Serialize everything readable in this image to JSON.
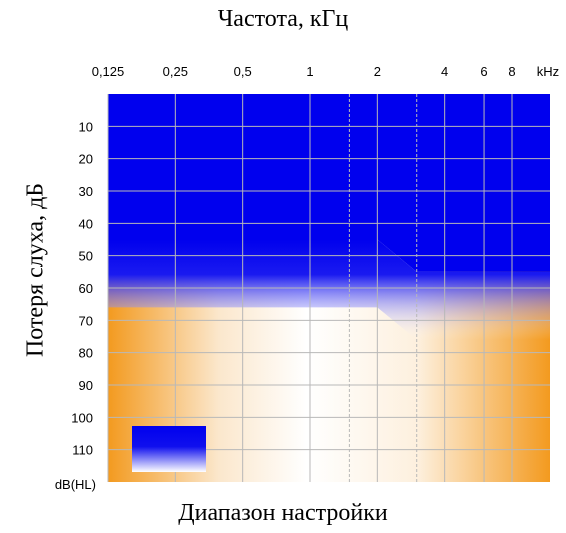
{
  "chart_data": {
    "type": "area",
    "title": "Частота, кГц",
    "xlabel": "Диапазон настройки",
    "ylabel": "Потеря слуха, дБ",
    "x_unit": "kHz",
    "y_unit": "dB(HL)",
    "x_ticks": [
      "0,125",
      "0,25",
      "0,5",
      "1",
      "2",
      "4",
      "6",
      "8"
    ],
    "x_tick_values": [
      0.125,
      0.25,
      0.5,
      1,
      2,
      4,
      6,
      8
    ],
    "y_ticks": [
      10,
      20,
      30,
      40,
      50,
      60,
      70,
      80,
      90,
      100,
      110
    ],
    "ylim": [
      0,
      120
    ],
    "x_scale": "log",
    "grid": true,
    "series": [
      {
        "x": [
          0.125,
          0.25,
          0.5,
          1,
          2,
          3,
          4,
          6,
          8,
          12
        ],
        "values": [
          45,
          45,
          45,
          45,
          45,
          55,
          55,
          55,
          55,
          55
        ]
      },
      {
        "x": [
          0.125,
          0.25,
          0.5,
          1,
          2,
          3,
          4,
          6,
          8,
          12
        ],
        "values": [
          66,
          66,
          66,
          66,
          66,
          76,
          76,
          76,
          76,
          76
        ]
      }
    ],
    "colors": {
      "upper_band": "#0000ee",
      "lower_band": "#f39a1f",
      "center": "#ffffff",
      "grid": "#b8b8b8"
    }
  }
}
